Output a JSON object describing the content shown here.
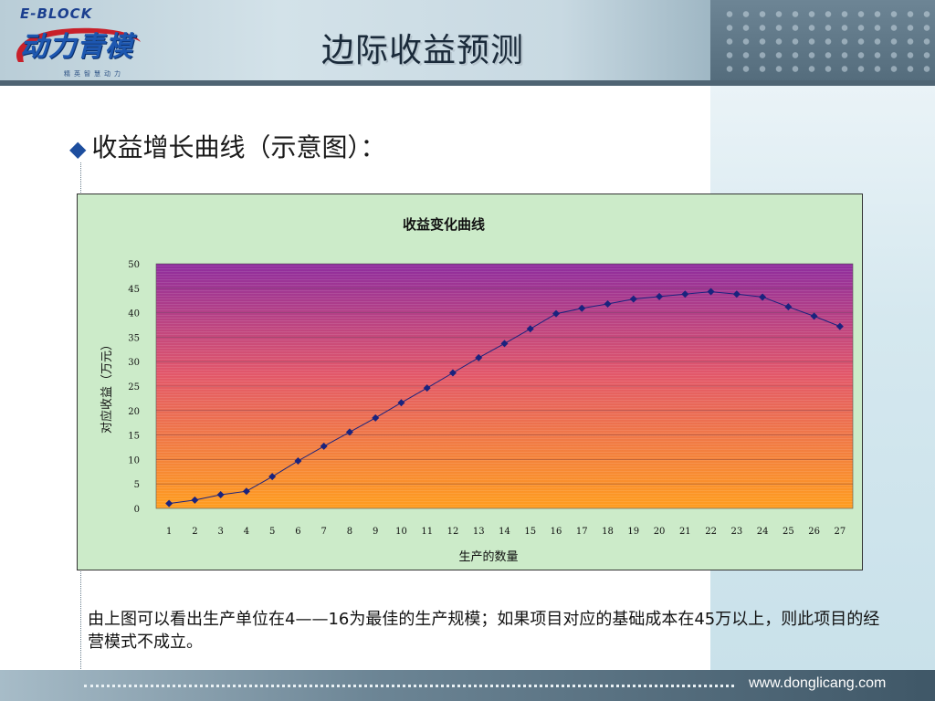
{
  "header": {
    "logo_top": "E-BLOCK",
    "logo_main": "动力青模",
    "logo_sub": "精英智慧动力",
    "title": "边际收益预测"
  },
  "bullet": {
    "text": "收益增长曲线（示意图）："
  },
  "chart_data": {
    "type": "line",
    "title": "收益变化曲线",
    "xlabel": "生产的数量",
    "ylabel": "对应收益（万元）",
    "ylim": [
      0,
      50
    ],
    "yticks": [
      0,
      5,
      10,
      15,
      20,
      25,
      30,
      35,
      40,
      45,
      50
    ],
    "x": [
      1,
      2,
      3,
      4,
      5,
      6,
      7,
      8,
      9,
      10,
      11,
      12,
      13,
      14,
      15,
      16,
      17,
      18,
      19,
      20,
      21,
      22,
      23,
      24,
      25,
      26,
      27
    ],
    "series": [
      {
        "values": [
          1,
          1.7,
          2.8,
          3.5,
          6.5,
          9.7,
          12.7,
          15.6,
          18.5,
          21.6,
          24.6,
          27.7,
          30.8,
          33.7,
          36.7,
          39.8,
          40.9,
          41.8,
          42.8,
          43.3,
          43.8,
          44.3,
          43.8,
          43.2,
          41.2,
          39.3,
          37.2
        ]
      }
    ],
    "colors": {
      "line": "#1a237e",
      "marker": "#1a237e",
      "plot_top": "#8e2d9e",
      "plot_bottom": "#ff9d1e",
      "background": "#ccebc9"
    },
    "grid": true,
    "legend": "none"
  },
  "paragraph": {
    "text": "由上图可以看出生产单位在4——16为最佳的生产规模；如果项目对应的基础成本在45万以上，则此项目的经营模式不成立。"
  },
  "footer": {
    "url": "www.donglicang.com"
  }
}
